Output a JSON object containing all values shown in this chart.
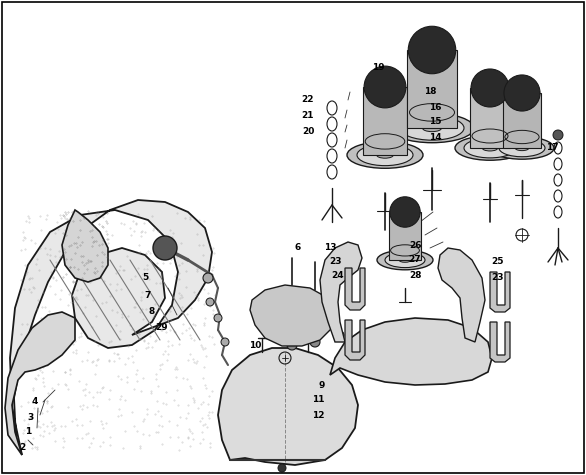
{
  "background_color": "#ffffff",
  "fig_width": 5.86,
  "fig_height": 4.75,
  "dpi": 100,
  "label_fontsize": 6.5,
  "label_color": "#000000",
  "line_color": "#1a1a1a",
  "line_width": 0.9,
  "gray_fill": "#cccccc",
  "dark_fill": "#444444",
  "stipple_color": "#999999"
}
